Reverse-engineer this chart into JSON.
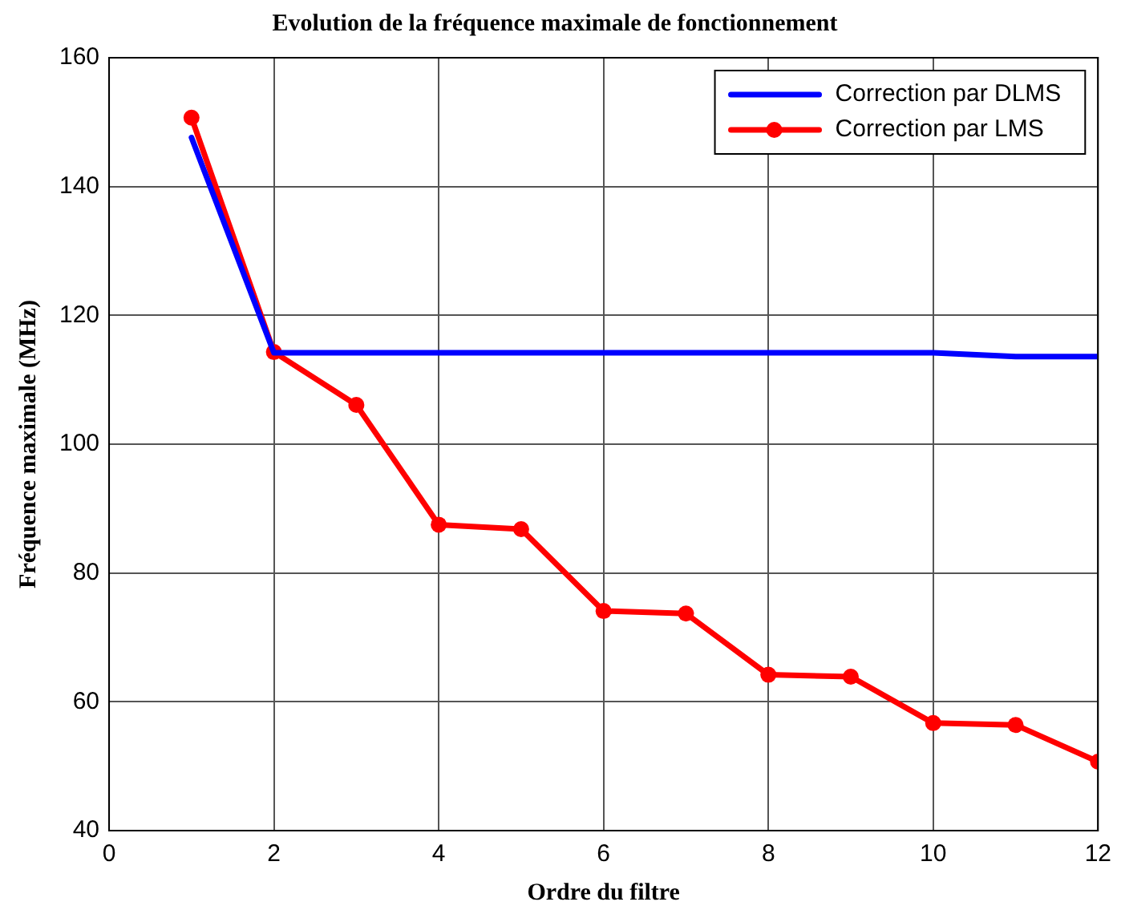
{
  "chart_data": {
    "type": "line",
    "title": "Evolution de la fréquence maximale de fonctionnement",
    "xlabel": "Ordre du filtre",
    "ylabel": "Fréquence maximale (MHz)",
    "x": [
      1,
      2,
      3,
      4,
      5,
      6,
      7,
      8,
      9,
      10,
      11,
      12
    ],
    "series": [
      {
        "name": "Correction par DLMS",
        "color": "#0000ff",
        "marker": "none",
        "values": [
          147.6,
          114.2,
          114.2,
          114.2,
          114.2,
          114.2,
          114.2,
          114.2,
          114.2,
          114.2,
          113.6,
          113.6
        ]
      },
      {
        "name": "Correction par LMS",
        "color": "#ff0000",
        "marker": "circle",
        "values": [
          150.7,
          114.3,
          106.1,
          87.5,
          86.8,
          74.1,
          73.7,
          64.2,
          63.9,
          56.7,
          56.4,
          50.7
        ]
      }
    ],
    "xlim": [
      0,
      12
    ],
    "xticks": [
      0,
      2,
      4,
      6,
      8,
      10,
      12
    ],
    "ylim": [
      40,
      160
    ],
    "yticks": [
      40,
      60,
      80,
      100,
      120,
      140,
      160
    ],
    "grid": true,
    "legend": "top right",
    "line_style": "solid"
  }
}
